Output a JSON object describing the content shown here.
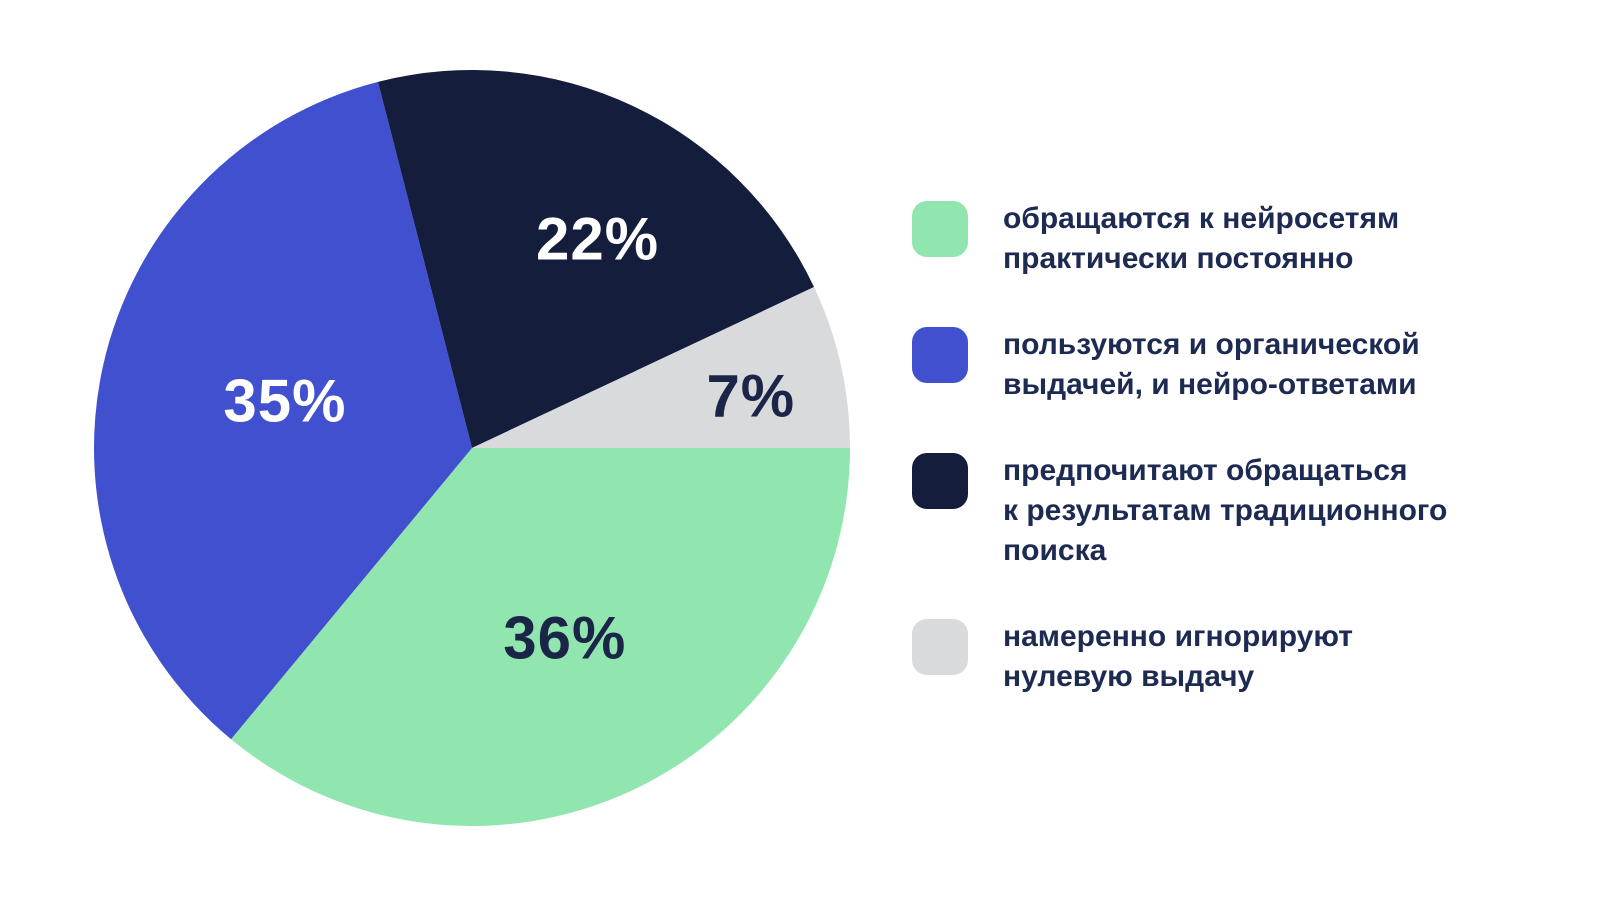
{
  "chart_data": {
    "type": "pie",
    "title": "",
    "legend_position": "right",
    "direction": "clockwise",
    "start_angle_deg": 0,
    "text_color": "#1d2a52",
    "slices": [
      {
        "label": "36%",
        "value": 36,
        "color": "#91e6af",
        "label_color": "#1b2548",
        "label_radius": 0.56,
        "label_angle": 64,
        "legend": "обращаются к нейросетям\nпрактически постоянно"
      },
      {
        "label": "35%",
        "value": 35,
        "color": "#4050ce",
        "label_color": "#ffffff",
        "label_radius": 0.51,
        "label_angle": 194,
        "legend": "пользуются и органической\nвыдачей, и нейро-ответами"
      },
      {
        "label": "22%",
        "value": 22,
        "color": "#151d3d",
        "label_color": "#ffffff",
        "label_radius": 0.645,
        "label_angle": 301,
        "legend": "предпочитают обращаться\nк результатам традиционного\nпоиска"
      },
      {
        "label": "7%",
        "value": 7,
        "color": "#d9dadc",
        "label_color": "#1b2548",
        "label_radius": 0.75,
        "label_angle": 349.5,
        "legend": "намеренно игнорируют\nнулевую выдачу"
      }
    ]
  }
}
